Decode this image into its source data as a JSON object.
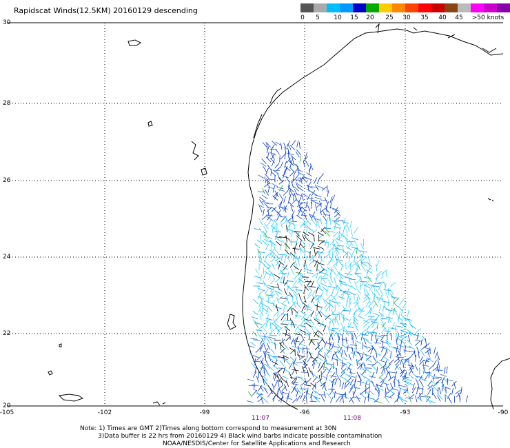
{
  "title": "Rapidscat Winds(12.5KM) 20160129 descending",
  "legend": {
    "labels": [
      "0",
      "5",
      "10",
      "15",
      "20",
      "25",
      "30",
      "35",
      "40",
      "45",
      ">50 knots"
    ],
    "colors": [
      "#555555",
      "#aaaaaa",
      "#00bfff",
      "#0099ff",
      "#0000cc",
      "#00aa00",
      "#ffcc00",
      "#ff8800",
      "#ff4400",
      "#ff0000",
      "#cc0000",
      "#8b4513",
      "#bbbbbb",
      "#ff00ff",
      "#cc00cc",
      "#8800aa",
      "#330066"
    ]
  },
  "lat_labels": [
    "30",
    "28",
    "26",
    "24",
    "22",
    "20"
  ],
  "lon_labels": [
    "-105",
    "-102",
    "-99",
    "-96",
    "-93",
    "-90"
  ],
  "times": [
    "11:07",
    "11:08"
  ],
  "notes": {
    "line1": "Note: 1) Times are GMT 2)Times along bottom correspond to measurement at 30N",
    "line2": "3)Data buffer is 22 hrs from 20160129 4) Black wind barbs indicate possible contamination",
    "line3": "NOAA/NESDIS/Center for Satellite Applications and Research"
  }
}
